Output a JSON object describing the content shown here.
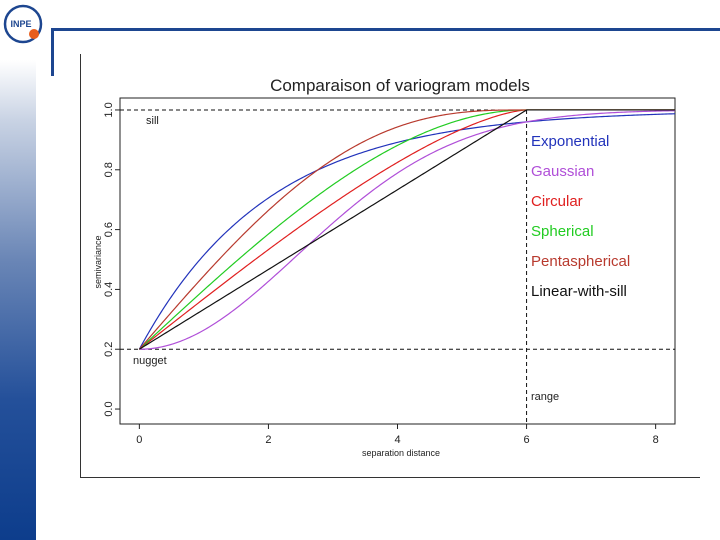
{
  "brand": {
    "logo_text": "INPE",
    "logo_color": "#1d4690",
    "accent_color": "#e85d1c"
  },
  "chart_data": {
    "type": "line",
    "title": "Comparaison of variogram models",
    "xlabel": "separation distance",
    "ylabel": "semivariance",
    "xlim": [
      -0.3,
      8.3
    ],
    "ylim": [
      -0.05,
      1.04
    ],
    "xticks": [
      0,
      2,
      4,
      6,
      8
    ],
    "yticks": [
      0.0,
      0.2,
      0.4,
      0.6,
      0.8,
      1.0
    ],
    "ytick_labels": [
      "0.0",
      "0.2",
      "0.4",
      "0.6",
      "0.8",
      "1.0"
    ],
    "nugget": 0.2,
    "sill": 1.0,
    "range": 6,
    "annotations": {
      "sill": "sill",
      "nugget": "nugget",
      "range": "range"
    },
    "series": [
      {
        "name": "Exponential",
        "model": "exponential",
        "color": "#2233bb"
      },
      {
        "name": "Gaussian",
        "model": "gaussian",
        "color": "#b04fd8"
      },
      {
        "name": "Circular",
        "model": "circular",
        "color": "#e02020"
      },
      {
        "name": "Spherical",
        "model": "spherical",
        "color": "#22cc22"
      },
      {
        "name": "Pentaspherical",
        "model": "pentaspherical",
        "color": "#b83a2e"
      },
      {
        "name": "Linear-with-sill",
        "model": "linear",
        "color": "#111111"
      }
    ]
  }
}
